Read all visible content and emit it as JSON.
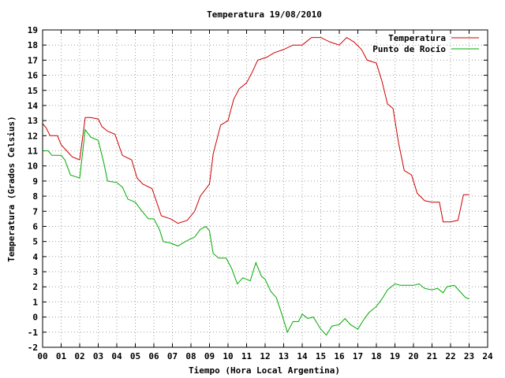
{
  "chart_data": {
    "type": "line",
    "title": "Temperatura 19/08/2010",
    "xlabel": "Tiempo (Hora Local Argentina)",
    "ylabel": "Temperatura (Grados Celsius)",
    "xlim": [
      0,
      24
    ],
    "ylim": [
      -2,
      19
    ],
    "x_ticks": [
      "00",
      "01",
      "02",
      "03",
      "04",
      "05",
      "06",
      "07",
      "08",
      "09",
      "10",
      "11",
      "12",
      "13",
      "14",
      "15",
      "16",
      "17",
      "18",
      "19",
      "20",
      "21",
      "22",
      "23",
      "24"
    ],
    "y_ticks": [
      -2,
      -1,
      0,
      1,
      2,
      3,
      4,
      5,
      6,
      7,
      8,
      9,
      10,
      11,
      12,
      13,
      14,
      15,
      16,
      17,
      18,
      19
    ],
    "grid": true,
    "legend_position": "top-right",
    "series": [
      {
        "name": "Temperatura",
        "color": "#cc0000",
        "points": [
          [
            0.0,
            12.8
          ],
          [
            0.2,
            12.5
          ],
          [
            0.4,
            12.0
          ],
          [
            0.8,
            12.0
          ],
          [
            1.0,
            11.4
          ],
          [
            1.3,
            11.0
          ],
          [
            1.6,
            10.6
          ],
          [
            2.0,
            10.4
          ],
          [
            2.3,
            13.2
          ],
          [
            2.6,
            13.2
          ],
          [
            3.0,
            13.1
          ],
          [
            3.2,
            12.6
          ],
          [
            3.5,
            12.3
          ],
          [
            3.9,
            12.1
          ],
          [
            4.3,
            10.7
          ],
          [
            4.8,
            10.4
          ],
          [
            5.1,
            9.2
          ],
          [
            5.4,
            8.8
          ],
          [
            5.9,
            8.5
          ],
          [
            6.1,
            7.8
          ],
          [
            6.4,
            6.7
          ],
          [
            6.9,
            6.5
          ],
          [
            7.3,
            6.2
          ],
          [
            7.8,
            6.4
          ],
          [
            8.2,
            7.0
          ],
          [
            8.5,
            8.0
          ],
          [
            9.0,
            8.8
          ],
          [
            9.2,
            10.8
          ],
          [
            9.6,
            12.7
          ],
          [
            10.0,
            13.0
          ],
          [
            10.3,
            14.4
          ],
          [
            10.6,
            15.1
          ],
          [
            11.0,
            15.5
          ],
          [
            11.3,
            16.2
          ],
          [
            11.6,
            17.0
          ],
          [
            12.1,
            17.2
          ],
          [
            12.5,
            17.5
          ],
          [
            13.0,
            17.7
          ],
          [
            13.5,
            18.0
          ],
          [
            14.0,
            18.0
          ],
          [
            14.5,
            18.5
          ],
          [
            15.0,
            18.5
          ],
          [
            15.5,
            18.2
          ],
          [
            16.0,
            18.0
          ],
          [
            16.4,
            18.5
          ],
          [
            16.8,
            18.2
          ],
          [
            17.2,
            17.7
          ],
          [
            17.5,
            17.0
          ],
          [
            18.0,
            16.8
          ],
          [
            18.3,
            15.6
          ],
          [
            18.6,
            14.1
          ],
          [
            18.9,
            13.8
          ],
          [
            19.2,
            11.5
          ],
          [
            19.5,
            9.7
          ],
          [
            19.9,
            9.4
          ],
          [
            20.2,
            8.2
          ],
          [
            20.6,
            7.7
          ],
          [
            21.0,
            7.6
          ],
          [
            21.4,
            7.6
          ],
          [
            21.6,
            6.3
          ],
          [
            22.0,
            6.3
          ],
          [
            22.4,
            6.4
          ],
          [
            22.7,
            8.1
          ],
          [
            23.0,
            8.1
          ]
        ]
      },
      {
        "name": "Punto de Rocío",
        "color": "#00aa00",
        "points": [
          [
            0.0,
            11.0
          ],
          [
            0.3,
            11.0
          ],
          [
            0.5,
            10.7
          ],
          [
            1.0,
            10.7
          ],
          [
            1.2,
            10.4
          ],
          [
            1.5,
            9.4
          ],
          [
            2.0,
            9.2
          ],
          [
            2.3,
            12.4
          ],
          [
            2.6,
            11.9
          ],
          [
            3.0,
            11.7
          ],
          [
            3.3,
            10.2
          ],
          [
            3.5,
            9.0
          ],
          [
            4.0,
            8.9
          ],
          [
            4.3,
            8.6
          ],
          [
            4.6,
            7.8
          ],
          [
            5.0,
            7.6
          ],
          [
            5.3,
            7.1
          ],
          [
            5.7,
            6.5
          ],
          [
            6.0,
            6.5
          ],
          [
            6.3,
            5.8
          ],
          [
            6.5,
            5.0
          ],
          [
            6.9,
            4.9
          ],
          [
            7.3,
            4.7
          ],
          [
            7.7,
            5.0
          ],
          [
            8.2,
            5.3
          ],
          [
            8.5,
            5.8
          ],
          [
            8.8,
            6.0
          ],
          [
            9.0,
            5.7
          ],
          [
            9.2,
            4.2
          ],
          [
            9.5,
            3.9
          ],
          [
            9.9,
            3.9
          ],
          [
            10.2,
            3.2
          ],
          [
            10.5,
            2.2
          ],
          [
            10.8,
            2.6
          ],
          [
            11.2,
            2.4
          ],
          [
            11.5,
            3.6
          ],
          [
            11.8,
            2.7
          ],
          [
            12.0,
            2.5
          ],
          [
            12.3,
            1.7
          ],
          [
            12.6,
            1.3
          ],
          [
            12.9,
            0.2
          ],
          [
            13.2,
            -1.0
          ],
          [
            13.5,
            -0.3
          ],
          [
            13.8,
            -0.3
          ],
          [
            14.0,
            0.2
          ],
          [
            14.3,
            -0.1
          ],
          [
            14.6,
            0.0
          ],
          [
            15.0,
            -0.8
          ],
          [
            15.3,
            -1.2
          ],
          [
            15.6,
            -0.6
          ],
          [
            16.0,
            -0.5
          ],
          [
            16.3,
            -0.1
          ],
          [
            16.6,
            -0.5
          ],
          [
            17.0,
            -0.8
          ],
          [
            17.3,
            -0.2
          ],
          [
            17.6,
            0.3
          ],
          [
            18.0,
            0.7
          ],
          [
            18.3,
            1.2
          ],
          [
            18.6,
            1.8
          ],
          [
            19.0,
            2.2
          ],
          [
            19.3,
            2.1
          ],
          [
            19.6,
            2.1
          ],
          [
            20.0,
            2.1
          ],
          [
            20.3,
            2.2
          ],
          [
            20.6,
            1.9
          ],
          [
            21.0,
            1.8
          ],
          [
            21.3,
            1.9
          ],
          [
            21.6,
            1.6
          ],
          [
            21.8,
            2.0
          ],
          [
            22.2,
            2.1
          ],
          [
            22.5,
            1.7
          ],
          [
            22.8,
            1.3
          ],
          [
            23.0,
            1.2
          ]
        ]
      }
    ]
  }
}
